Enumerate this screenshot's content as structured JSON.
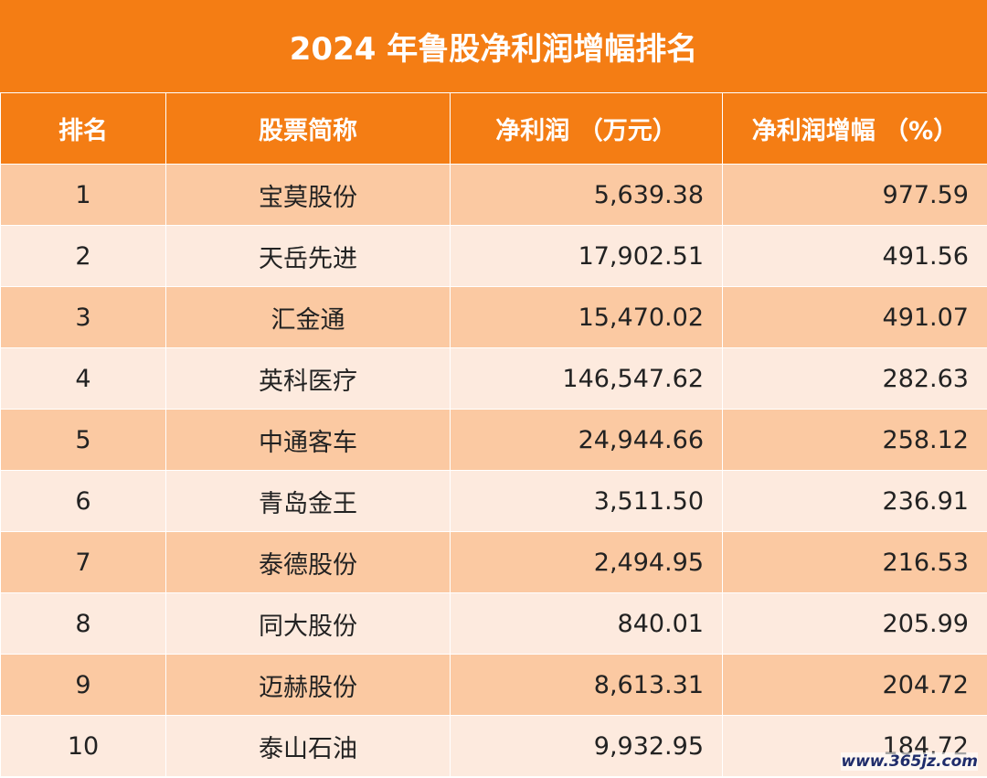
{
  "title": "2024 年鲁股净利润增幅排名",
  "columns": [
    "排名",
    "股票简称",
    "净利润 （万元）",
    "净利润增幅 （%）"
  ],
  "watermark": "www.365jz.com",
  "chart_data": {
    "type": "table",
    "title": "2024 年鲁股净利润增幅排名",
    "columns": [
      "排名",
      "股票简称",
      "净利润 （万元）",
      "净利润增幅 （%）"
    ],
    "rows": [
      [
        "1",
        "宝莫股份",
        "5,639.38",
        "977.59"
      ],
      [
        "2",
        "天岳先进",
        "17,902.51",
        "491.56"
      ],
      [
        "3",
        "汇金通",
        "15,470.02",
        "491.07"
      ],
      [
        "4",
        "英科医疗",
        "146,547.62",
        "282.63"
      ],
      [
        "5",
        "中通客车",
        "24,944.66",
        "258.12"
      ],
      [
        "6",
        "青岛金王",
        "3,511.50",
        "236.91"
      ],
      [
        "7",
        "泰德股份",
        "2,494.95",
        "216.53"
      ],
      [
        "8",
        "同大股份",
        "840.01",
        "205.99"
      ],
      [
        "9",
        "迈赫股份",
        "8,613.31",
        "204.72"
      ],
      [
        "10",
        "泰山石油",
        "9,932.95",
        "184.72"
      ]
    ]
  }
}
